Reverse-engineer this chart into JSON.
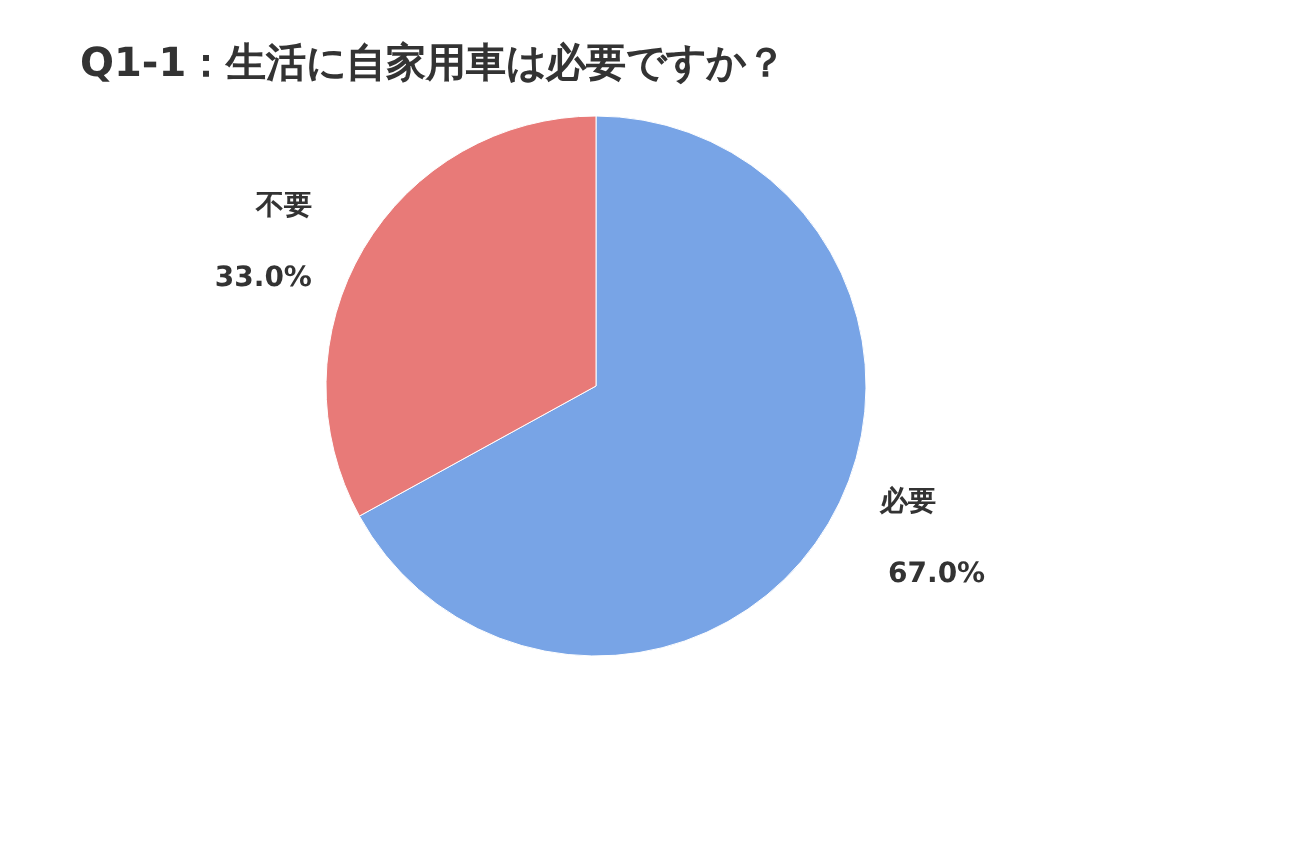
{
  "chart_data": {
    "type": "pie",
    "title": "Q1-1：生活に自家用車は必要ですか？",
    "categories": [
      "必要",
      "不要"
    ],
    "values": [
      67.0,
      33.0
    ],
    "value_labels": [
      "67.0%",
      "33.0%"
    ],
    "colors": [
      "#78a4e6",
      "#e87a78"
    ]
  }
}
